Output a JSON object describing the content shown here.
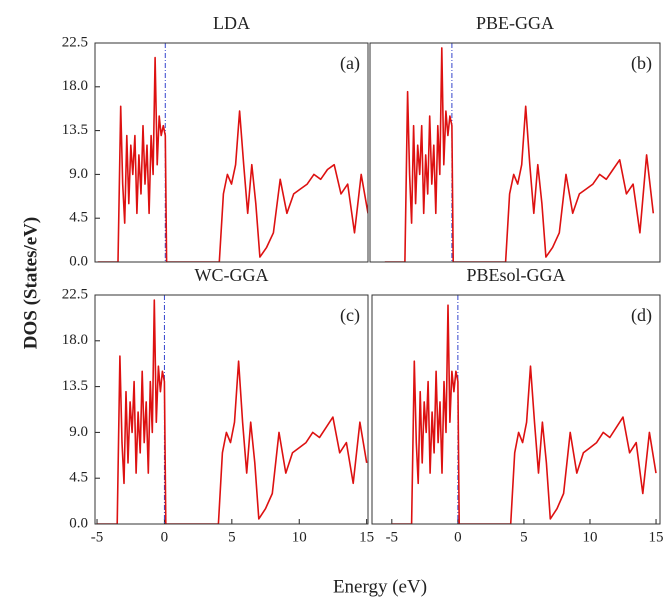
{
  "y_label": "DOS (States/eV)",
  "x_label": "Energy (eV)",
  "chart_data": [
    {
      "type": "line",
      "title": "LDA",
      "panel_label": "(a)",
      "color": "#dd1111",
      "xlim": [
        -5.2,
        15
      ],
      "ylim": [
        0,
        22.5
      ],
      "yticks": [
        {
          "value": 0,
          "label": "0.0"
        },
        4.5,
        {
          "value": 9,
          "label": "9.0"
        },
        13.5,
        {
          "value": 18,
          "label": "18.0"
        },
        22.5
      ],
      "vline": 0,
      "vline_color": "#3344cc",
      "x": [
        -5,
        -3.5,
        -3.3,
        -3.15,
        -3.0,
        -2.85,
        -2.7,
        -2.55,
        -2.4,
        -2.25,
        -2.1,
        -1.95,
        -1.8,
        -1.65,
        -1.5,
        -1.35,
        -1.2,
        -1.05,
        -0.9,
        -0.75,
        -0.6,
        -0.45,
        -0.3,
        -0.15,
        0,
        0.1,
        4,
        4.3,
        4.6,
        4.9,
        5.2,
        5.5,
        5.8,
        6.1,
        6.4,
        6.7,
        7,
        7.5,
        8,
        8.5,
        9,
        9.5,
        10,
        10.5,
        11,
        11.5,
        12,
        12.5,
        13,
        13.5,
        14,
        14.5,
        15
      ],
      "values": [
        0,
        0,
        16,
        8,
        4,
        13,
        6,
        12,
        9,
        13,
        5,
        11,
        7,
        14,
        8,
        12,
        5,
        13,
        9,
        21,
        10,
        15,
        13,
        14,
        13,
        0,
        0,
        7,
        9,
        8,
        10,
        15.5,
        10,
        5,
        10,
        6,
        0.5,
        1.5,
        3,
        8.5,
        5,
        7,
        7.5,
        8,
        9,
        8.5,
        9.5,
        10,
        7,
        8,
        3,
        9,
        5
      ]
    },
    {
      "type": "line",
      "title": "PBE-GGA",
      "panel_label": "(b)",
      "color": "#dd1111",
      "xlim": [
        -6.1,
        15.5
      ],
      "ylim": [
        0,
        22.5
      ],
      "vline": 0,
      "vline_color": "#3344cc",
      "x": [
        -5,
        -3.5,
        -3.3,
        -3.15,
        -3.0,
        -2.85,
        -2.7,
        -2.55,
        -2.4,
        -2.25,
        -2.1,
        -1.95,
        -1.8,
        -1.65,
        -1.5,
        -1.35,
        -1.2,
        -1.05,
        -0.9,
        -0.75,
        -0.6,
        -0.45,
        -0.3,
        -0.15,
        0,
        0.1,
        4,
        4.3,
        4.6,
        4.9,
        5.2,
        5.5,
        5.8,
        6.1,
        6.4,
        6.7,
        7,
        7.5,
        8,
        8.5,
        9,
        9.5,
        10,
        10.5,
        11,
        11.5,
        12,
        12.5,
        13,
        13.5,
        14,
        14.5,
        15
      ],
      "values": [
        0,
        0,
        17.5,
        9,
        4,
        14,
        6,
        12,
        9,
        14,
        5,
        11,
        7,
        15,
        8,
        12,
        5,
        14,
        9,
        22,
        10,
        15.5,
        13,
        15,
        14,
        0,
        0,
        7,
        9,
        8,
        10,
        16,
        10,
        5,
        10,
        6,
        0.5,
        1.5,
        3,
        9,
        5,
        7,
        7.5,
        8,
        9,
        8.5,
        9.5,
        10.5,
        7,
        8,
        3,
        11,
        5
      ]
    },
    {
      "type": "line",
      "title": "WC-GGA",
      "panel_label": "(c)",
      "color": "#dd1111",
      "xlim": [
        -5.15,
        15.1
      ],
      "ylim": [
        0,
        22.5
      ],
      "yticks": [
        {
          "value": 0,
          "label": "0.0"
        },
        4.5,
        {
          "value": 9,
          "label": "9.0"
        },
        13.5,
        {
          "value": 18,
          "label": "18.0"
        },
        22.5
      ],
      "xticks": [
        -5,
        0,
        5,
        10,
        15
      ],
      "vline": 0,
      "vline_color": "#3344cc",
      "x": [
        -5,
        -3.5,
        -3.3,
        -3.15,
        -3.0,
        -2.85,
        -2.7,
        -2.55,
        -2.4,
        -2.25,
        -2.1,
        -1.95,
        -1.8,
        -1.65,
        -1.5,
        -1.35,
        -1.2,
        -1.05,
        -0.9,
        -0.75,
        -0.6,
        -0.45,
        -0.3,
        -0.15,
        0,
        0.1,
        4,
        4.3,
        4.6,
        4.9,
        5.2,
        5.5,
        5.8,
        6.1,
        6.4,
        6.7,
        7,
        7.5,
        8,
        8.5,
        9,
        9.5,
        10,
        10.5,
        11,
        11.5,
        12,
        12.5,
        13,
        13.5,
        14,
        14.5,
        15
      ],
      "values": [
        0,
        0,
        16.5,
        8,
        4,
        13,
        6,
        12,
        9,
        14,
        5,
        11,
        7,
        15,
        8,
        12,
        5,
        14,
        9,
        22,
        10,
        15.5,
        13,
        15,
        14,
        0,
        0,
        7,
        9,
        8,
        10,
        16,
        10,
        5,
        10,
        6,
        0.5,
        1.5,
        3,
        9,
        5,
        7,
        7.5,
        8,
        9,
        8.5,
        9.5,
        10.5,
        7,
        8,
        4,
        10,
        6
      ]
    },
    {
      "type": "line",
      "title": "PBEsol-GGA",
      "panel_label": "(d)",
      "color": "#dd1111",
      "xlim": [
        -6.5,
        15.3
      ],
      "ylim": [
        0,
        22.5
      ],
      "xticks": [
        -5,
        0,
        5,
        10,
        15
      ],
      "vline": 0,
      "vline_color": "#3344cc",
      "x": [
        -5,
        -3.5,
        -3.3,
        -3.15,
        -3.0,
        -2.85,
        -2.7,
        -2.55,
        -2.4,
        -2.25,
        -2.1,
        -1.95,
        -1.8,
        -1.65,
        -1.5,
        -1.35,
        -1.2,
        -1.05,
        -0.9,
        -0.75,
        -0.6,
        -0.45,
        -0.3,
        -0.15,
        0,
        0.1,
        4,
        4.3,
        4.6,
        4.9,
        5.2,
        5.5,
        5.8,
        6.1,
        6.4,
        6.7,
        7,
        7.5,
        8,
        8.5,
        9,
        9.5,
        10,
        10.5,
        11,
        11.5,
        12,
        12.5,
        13,
        13.5,
        14,
        14.5,
        15
      ],
      "values": [
        0,
        0,
        16,
        8,
        4,
        13,
        6,
        12,
        9,
        14,
        5,
        11,
        7,
        15,
        8,
        12,
        5,
        14,
        9,
        21.5,
        10,
        15,
        13,
        15,
        14,
        0,
        0,
        7,
        9,
        8,
        10,
        15.5,
        10,
        5,
        10,
        6,
        0.5,
        1.5,
        3,
        9,
        5,
        7,
        7.5,
        8,
        9,
        8.5,
        9.5,
        10.5,
        7,
        8,
        3,
        9,
        5
      ]
    }
  ]
}
